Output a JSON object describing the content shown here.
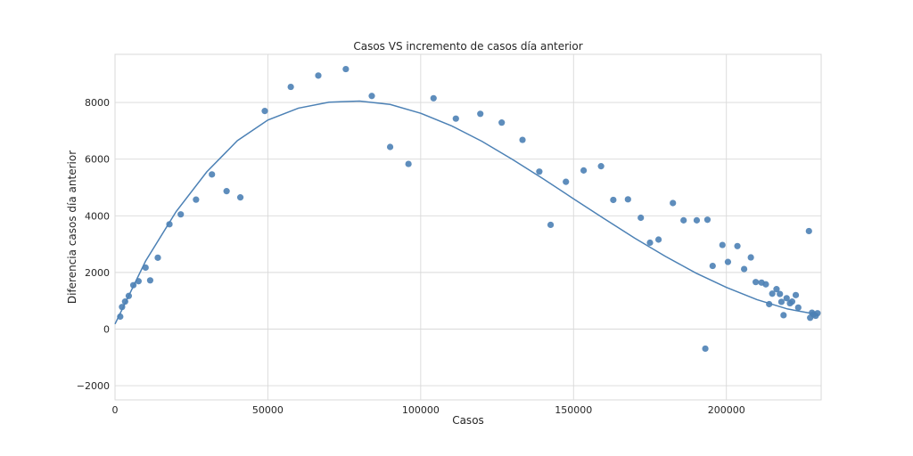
{
  "chart_data": {
    "type": "scatter",
    "title": "Casos VS incremento de casos día anterior",
    "xlabel": "Casos",
    "ylabel": "Diferencia casos día anterior",
    "xlim": [
      0,
      231000
    ],
    "ylim": [
      -2500,
      9700
    ],
    "xticks": [
      0,
      50000,
      100000,
      150000,
      200000
    ],
    "yticks": [
      -2000,
      0,
      2000,
      4000,
      6000,
      8000
    ],
    "xtick_labels": [
      "0",
      "50000",
      "100000",
      "150000",
      "200000"
    ],
    "ytick_labels": [
      "−2000",
      "0",
      "2000",
      "4000",
      "6000",
      "8000"
    ],
    "grid": true,
    "colors": {
      "points": "#4c81b5",
      "fit_line": "#4c81b5",
      "grid": "#d9d9d9"
    },
    "series": [
      {
        "type": "scatter",
        "points": [
          [
            1700,
            440
          ],
          [
            2300,
            780
          ],
          [
            3300,
            970
          ],
          [
            4500,
            1170
          ],
          [
            6000,
            1550
          ],
          [
            7700,
            1690
          ],
          [
            10000,
            2170
          ],
          [
            11500,
            1720
          ],
          [
            14000,
            2520
          ],
          [
            17800,
            3700
          ],
          [
            21500,
            4050
          ],
          [
            26500,
            4570
          ],
          [
            31700,
            5460
          ],
          [
            36500,
            4870
          ],
          [
            41000,
            4650
          ],
          [
            49000,
            7700
          ],
          [
            57500,
            8550
          ],
          [
            66500,
            8950
          ],
          [
            75500,
            9180
          ],
          [
            84000,
            8230
          ],
          [
            90000,
            6430
          ],
          [
            96000,
            5830
          ],
          [
            104200,
            8150
          ],
          [
            111500,
            7430
          ],
          [
            119500,
            7600
          ],
          [
            126500,
            7290
          ],
          [
            133300,
            6680
          ],
          [
            138800,
            5560
          ],
          [
            142500,
            3680
          ],
          [
            147500,
            5200
          ],
          [
            153300,
            5600
          ],
          [
            159000,
            5750
          ],
          [
            163000,
            4560
          ],
          [
            167800,
            4580
          ],
          [
            172000,
            3930
          ],
          [
            175000,
            3050
          ],
          [
            177800,
            3160
          ],
          [
            182500,
            4450
          ],
          [
            186000,
            3840
          ],
          [
            190300,
            3840
          ],
          [
            193800,
            3860
          ],
          [
            195500,
            2230
          ],
          [
            198700,
            2970
          ],
          [
            200500,
            2370
          ],
          [
            203600,
            2930
          ],
          [
            205800,
            2120
          ],
          [
            208000,
            2530
          ],
          [
            209600,
            1660
          ],
          [
            211500,
            1640
          ],
          [
            212900,
            1580
          ],
          [
            214000,
            880
          ],
          [
            215000,
            1250
          ],
          [
            216400,
            1410
          ],
          [
            217500,
            1240
          ],
          [
            218000,
            960
          ],
          [
            218700,
            490
          ],
          [
            219700,
            1090
          ],
          [
            220800,
            910
          ],
          [
            221500,
            970
          ],
          [
            222700,
            1200
          ],
          [
            223500,
            760
          ],
          [
            227000,
            3460
          ],
          [
            227400,
            400
          ],
          [
            228000,
            580
          ],
          [
            228500,
            520
          ],
          [
            229200,
            470
          ],
          [
            229800,
            560
          ],
          [
            193100,
            -690
          ]
        ]
      },
      {
        "type": "line",
        "points": [
          [
            0,
            180
          ],
          [
            10000,
            2400
          ],
          [
            20000,
            4150
          ],
          [
            30000,
            5550
          ],
          [
            40000,
            6650
          ],
          [
            50000,
            7380
          ],
          [
            60000,
            7800
          ],
          [
            70000,
            8010
          ],
          [
            80000,
            8050
          ],
          [
            90000,
            7930
          ],
          [
            100000,
            7620
          ],
          [
            110000,
            7180
          ],
          [
            120000,
            6630
          ],
          [
            130000,
            5990
          ],
          [
            140000,
            5310
          ],
          [
            150000,
            4600
          ],
          [
            160000,
            3900
          ],
          [
            170000,
            3210
          ],
          [
            180000,
            2570
          ],
          [
            190000,
            1980
          ],
          [
            200000,
            1470
          ],
          [
            210000,
            1040
          ],
          [
            220000,
            710
          ],
          [
            230000,
            510
          ]
        ]
      }
    ]
  }
}
